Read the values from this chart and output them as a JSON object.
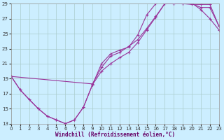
{
  "xlabel": "Windchill (Refroidissement éolien,°C)",
  "xlim": [
    0,
    23
  ],
  "ylim": [
    13,
    29
  ],
  "xticks": [
    0,
    1,
    2,
    3,
    4,
    5,
    6,
    7,
    8,
    9,
    10,
    11,
    12,
    13,
    14,
    15,
    16,
    17,
    18,
    19,
    20,
    21,
    22,
    23
  ],
  "yticks": [
    13,
    15,
    17,
    19,
    21,
    23,
    25,
    27,
    29
  ],
  "background_color": "#cceeff",
  "grid_color": "#aacccc",
  "line_color": "#993399",
  "curve1_x": [
    0,
    1,
    2,
    3,
    4,
    5,
    6,
    7,
    8,
    9,
    10,
    11,
    12,
    13,
    14,
    15,
    16,
    17,
    18,
    19,
    20,
    21,
    22,
    23
  ],
  "curve1_y": [
    19.3,
    17.5,
    16.2,
    15.0,
    14.0,
    13.5,
    13.0,
    13.5,
    15.2,
    18.2,
    21.0,
    22.3,
    22.8,
    23.2,
    24.8,
    27.5,
    29.0,
    29.5,
    29.5,
    29.5,
    29.1,
    28.2,
    27.0,
    25.5
  ],
  "curve2_x": [
    0,
    1,
    3,
    4,
    5,
    6,
    7,
    8,
    9,
    10,
    11,
    12,
    13,
    14,
    15,
    16,
    17,
    18,
    19,
    20,
    21,
    22,
    23
  ],
  "curve2_y": [
    19.3,
    17.5,
    15.0,
    14.0,
    13.5,
    13.0,
    13.5,
    15.2,
    18.2,
    20.0,
    21.0,
    21.8,
    22.5,
    23.8,
    25.5,
    27.2,
    29.0,
    29.0,
    29.0,
    29.0,
    28.5,
    28.5,
    26.0
  ],
  "curve3_x": [
    0,
    9,
    10,
    11,
    12,
    13,
    14,
    15,
    16,
    17,
    18,
    19,
    20,
    21,
    22,
    23
  ],
  "curve3_y": [
    19.3,
    18.3,
    20.5,
    22.0,
    22.5,
    23.3,
    24.2,
    25.7,
    27.3,
    29.0,
    29.0,
    29.0,
    28.9,
    28.9,
    28.9,
    26.0
  ],
  "marker": "+"
}
